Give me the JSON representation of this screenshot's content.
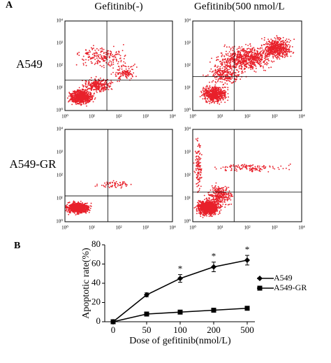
{
  "panel_a": {
    "label": "A",
    "columns": [
      "Gefitinib(-)",
      "Gefitinib(500 nmol/L"
    ],
    "rows": [
      "A549",
      "A549-GR"
    ],
    "axis_ticks": [
      "10⁰",
      "10¹",
      "10²",
      "10³",
      "10⁴"
    ]
  },
  "chart_data": {
    "type": "line",
    "panel_label": "B",
    "x_label": "Dose of gefitinib(nmol/L)",
    "y_label": "Apoptotic rate(%)",
    "categories": [
      "0",
      "50",
      "100",
      "200",
      "500"
    ],
    "ylim": [
      0,
      80
    ],
    "yticks": [
      0,
      20,
      40,
      60,
      80
    ],
    "series": [
      {
        "name": "A549",
        "color": "#000000",
        "marker": "diamond",
        "values": [
          0,
          28,
          45,
          57,
          64
        ],
        "errors": [
          0,
          2,
          4,
          5,
          5
        ]
      },
      {
        "name": "A549-GR",
        "color": "#000000",
        "marker": "square",
        "values": [
          0,
          8,
          10,
          12,
          14
        ],
        "errors": [
          0,
          1,
          1,
          1,
          1
        ]
      }
    ],
    "annotations": [
      {
        "text": "*",
        "x": "100"
      },
      {
        "text": "*",
        "x": "200"
      },
      {
        "text": "*",
        "x": "500"
      }
    ]
  }
}
